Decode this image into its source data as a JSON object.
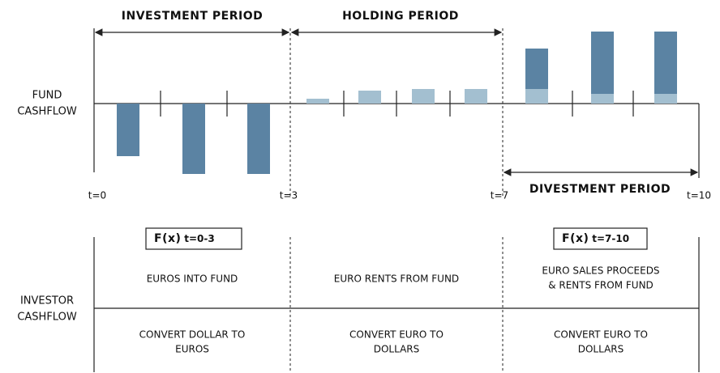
{
  "periods": {
    "investment": "INVESTMENT PERIOD",
    "holding": "HOLDING PERIOD",
    "divestment": "DIVESTMENT PERIOD"
  },
  "fund_cashflow": {
    "label": [
      "FUND",
      "CASHFLOW"
    ]
  },
  "time_labels": [
    "t=0",
    "t=3",
    "t=7",
    "t=10"
  ],
  "formulas": [
    {
      "fx": "F(x)",
      "range": "t=0-3"
    },
    {
      "fx": "F(x)",
      "range": "t=7-10"
    }
  ],
  "investor_cashflow": {
    "label": [
      "INVESTOR",
      "CASHFLOW"
    ],
    "top": [
      [
        "EUROS INTO FUND"
      ],
      [
        "EURO RENTS FROM FUND"
      ],
      [
        "EURO SALES PROCEEDS",
        "& RENTS FROM FUND"
      ]
    ],
    "bottom": [
      [
        "CONVERT DOLLAR TO",
        "EUROS"
      ],
      [
        "CONVERT EURO TO",
        "DOLLARS"
      ],
      [
        "CONVERT EURO TO",
        "DOLLARS"
      ]
    ]
  }
}
